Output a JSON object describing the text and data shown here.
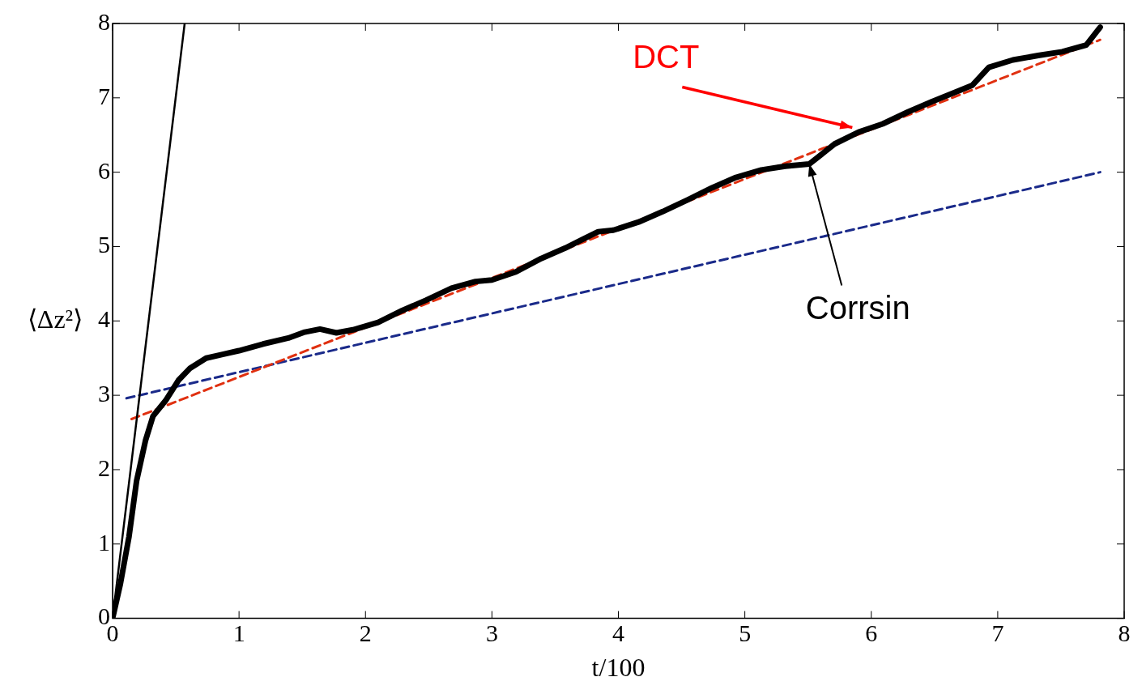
{
  "chart_data": {
    "type": "line",
    "xlabel": "t/100",
    "ylabel": "⟨Δz²⟩",
    "xlim": [
      0,
      8
    ],
    "ylim": [
      0,
      8
    ],
    "xticks": [
      0,
      1,
      2,
      3,
      4,
      5,
      6,
      7,
      8
    ],
    "yticks": [
      0,
      1,
      2,
      3,
      4,
      5,
      6,
      7,
      8
    ],
    "grid": false,
    "legend": false,
    "marker": "none",
    "series": [
      {
        "color": "#000000",
        "line_style": "solid",
        "x": [
          0,
          0.06,
          0.13,
          0.19,
          0.26,
          0.32,
          0.42,
          0.52,
          0.61,
          0.74,
          0.87,
          1.0,
          1.19,
          1.39,
          1.52,
          1.64,
          1.77,
          1.9,
          2.1,
          2.29,
          2.48,
          2.68,
          2.87,
          3.0,
          3.19,
          3.39,
          3.58,
          3.71,
          3.84,
          3.96,
          4.16,
          4.35,
          4.55,
          4.74,
          4.93,
          5.13,
          5.32,
          5.51,
          5.71,
          5.9,
          6.09,
          6.29,
          6.48,
          6.67,
          6.8,
          6.93,
          7.12,
          7.32,
          7.51,
          7.7,
          7.81
        ],
        "values": [
          0,
          0.45,
          1.1,
          1.85,
          2.39,
          2.72,
          2.93,
          3.2,
          3.36,
          3.5,
          3.55,
          3.6,
          3.69,
          3.77,
          3.85,
          3.89,
          3.84,
          3.88,
          3.98,
          4.14,
          4.28,
          4.44,
          4.53,
          4.55,
          4.66,
          4.84,
          4.98,
          5.09,
          5.2,
          5.22,
          5.33,
          5.47,
          5.63,
          5.79,
          5.93,
          6.03,
          6.08,
          6.11,
          6.38,
          6.54,
          6.65,
          6.81,
          6.95,
          7.08,
          7.17,
          7.41,
          7.51,
          7.57,
          7.62,
          7.71,
          7.95
        ]
      },
      {
        "color": "#000000",
        "line_style": "solid",
        "x": [
          0,
          0.57
        ],
        "values": [
          0,
          8
        ]
      },
      {
        "color": "#e03010",
        "line_style": "dashed",
        "x": [
          0.15,
          7.81
        ],
        "values": [
          2.68,
          7.78
        ]
      },
      {
        "color": "#1a2a8a",
        "line_style": "dashed",
        "x": [
          0.11,
          7.81
        ],
        "values": [
          2.96,
          6.0
        ]
      }
    ],
    "annotations": [
      {
        "text": "DCT",
        "x": 5.85,
        "y": 6.6
      },
      {
        "text": "Corrsin",
        "x": 5.51,
        "y": 6.11
      }
    ]
  }
}
